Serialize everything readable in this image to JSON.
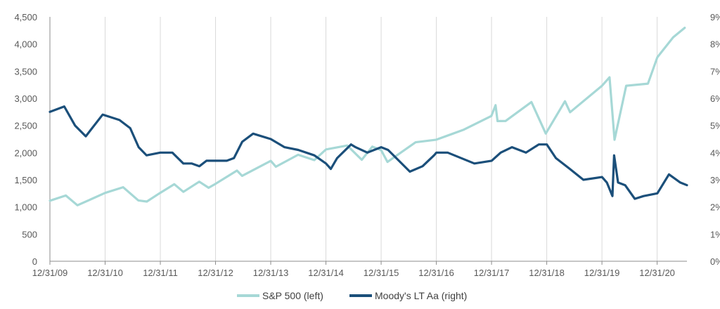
{
  "chart_data": {
    "type": "line",
    "x_ticks": [
      "12/31/09",
      "12/31/10",
      "12/31/11",
      "12/31/12",
      "12/31/13",
      "12/31/14",
      "12/31/15",
      "12/31/16",
      "12/31/17",
      "12/31/18",
      "12/31/19",
      "12/31/20"
    ],
    "y_left_ticks": [
      "0",
      "500",
      "1,000",
      "1,500",
      "2,000",
      "2,500",
      "3,000",
      "3,500",
      "4,000",
      "4,500"
    ],
    "y_right_ticks": [
      "0%",
      "1%",
      "2%",
      "3%",
      "4%",
      "5%",
      "6%",
      "7%",
      "8%",
      "9%"
    ],
    "ylim_left": [
      0,
      4500
    ],
    "ylim_right": [
      0,
      9
    ],
    "xlim": [
      "2009-12-31",
      "2021-07-15"
    ],
    "grid": "vertical",
    "legend_position": "bottom",
    "colors": {
      "sp500": "#a6d8d6",
      "moodys": "#1b4f7a",
      "grid": "#d9d9d9",
      "axis": "#8c8c8c"
    },
    "series": [
      {
        "name": "S&P 500 (left)",
        "axis": "left",
        "x": [
          "2009-12-31",
          "2010-04-15",
          "2010-07-01",
          "2010-10-01",
          "2010-12-31",
          "2011-04-29",
          "2011-08-08",
          "2011-10-03",
          "2011-12-30",
          "2012-04-02",
          "2012-06-01",
          "2012-09-14",
          "2012-11-15",
          "2012-12-31",
          "2013-05-21",
          "2013-06-24",
          "2013-12-31",
          "2014-02-03",
          "2014-06-30",
          "2014-10-15",
          "2014-12-31",
          "2015-05-21",
          "2015-08-25",
          "2015-11-03",
          "2015-12-31",
          "2016-02-11",
          "2016-08-15",
          "2016-12-30",
          "2017-06-30",
          "2017-12-29",
          "2018-01-26",
          "2018-02-08",
          "2018-04-02",
          "2018-09-20",
          "2018-12-24",
          "2019-04-30",
          "2019-06-03",
          "2019-12-31",
          "2020-02-19",
          "2020-03-23",
          "2020-06-08",
          "2020-10-30",
          "2020-12-31",
          "2021-04-15",
          "2021-06-30"
        ],
        "values": [
          1115,
          1210,
          1030,
          1145,
          1258,
          1363,
          1120,
          1099,
          1258,
          1419,
          1278,
          1465,
          1353,
          1426,
          1669,
          1573,
          1848,
          1741,
          1960,
          1862,
          2059,
          2131,
          1868,
          2110,
          2044,
          1829,
          2190,
          2239,
          2423,
          2674,
          2873,
          2581,
          2582,
          2931,
          2351,
          2946,
          2744,
          3231,
          3386,
          2237,
          3232,
          3270,
          3756,
          4124,
          4298
        ]
      },
      {
        "name": "Moody's LT Aa (right)",
        "axis": "right",
        "x": [
          "2009-12-31",
          "2010-04-05",
          "2010-06-15",
          "2010-08-25",
          "2010-12-15",
          "2011-02-10",
          "2011-04-05",
          "2011-06-15",
          "2011-08-10",
          "2011-10-01",
          "2011-12-31",
          "2012-03-20",
          "2012-06-01",
          "2012-07-25",
          "2012-09-15",
          "2012-11-01",
          "2012-12-31",
          "2013-03-15",
          "2013-05-01",
          "2013-06-25",
          "2013-09-05",
          "2013-12-31",
          "2014-04-01",
          "2014-07-01",
          "2014-10-15",
          "2014-12-31",
          "2015-02-01",
          "2015-03-15",
          "2015-06-15",
          "2015-07-15",
          "2015-10-01",
          "2015-12-31",
          "2016-02-15",
          "2016-07-08",
          "2016-09-30",
          "2016-12-15",
          "2016-12-31",
          "2017-03-15",
          "2017-09-08",
          "2017-12-31",
          "2018-03-01",
          "2018-05-15",
          "2018-08-15",
          "2018-11-08",
          "2018-12-31",
          "2019-03-01",
          "2019-06-01",
          "2019-08-30",
          "2019-12-31",
          "2020-02-01",
          "2020-03-09",
          "2020-03-20",
          "2020-04-15",
          "2020-06-01",
          "2020-08-04",
          "2020-10-01",
          "2020-12-31",
          "2021-03-18",
          "2021-06-01",
          "2021-07-15"
        ],
        "values": [
          5.5,
          5.7,
          5.0,
          4.6,
          5.4,
          5.3,
          5.2,
          4.9,
          4.2,
          3.9,
          4.0,
          4.0,
          3.6,
          3.6,
          3.5,
          3.7,
          3.7,
          3.7,
          3.8,
          4.4,
          4.7,
          4.5,
          4.2,
          4.1,
          3.9,
          3.6,
          3.4,
          3.8,
          4.3,
          4.2,
          4.0,
          4.2,
          4.1,
          3.3,
          3.5,
          3.9,
          4.0,
          4.0,
          3.6,
          3.7,
          4.0,
          4.2,
          4.0,
          4.3,
          4.3,
          3.8,
          3.4,
          3.0,
          3.1,
          2.9,
          2.4,
          3.9,
          2.9,
          2.8,
          2.3,
          2.4,
          2.5,
          3.2,
          2.9,
          2.8
        ]
      }
    ]
  }
}
